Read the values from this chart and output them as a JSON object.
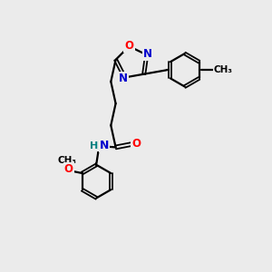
{
  "bg_color": "#ebebeb",
  "bond_color": "#000000",
  "atom_colors": {
    "O": "#ff0000",
    "N": "#0000cd",
    "H": "#008080",
    "C": "#000000"
  },
  "figsize": [
    3.0,
    3.0
  ],
  "dpi": 100
}
